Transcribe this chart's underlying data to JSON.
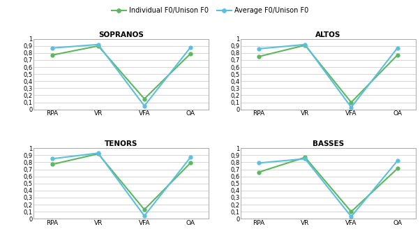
{
  "categories": [
    "RPA",
    "VR",
    "VFA",
    "OA"
  ],
  "panels": [
    {
      "title": "SOPRANOS",
      "individual": [
        0.77,
        0.9,
        0.15,
        0.79
      ],
      "average": [
        0.87,
        0.92,
        0.05,
        0.88
      ]
    },
    {
      "title": "ALTOS",
      "individual": [
        0.75,
        0.91,
        0.1,
        0.77
      ],
      "average": [
        0.86,
        0.92,
        0.03,
        0.87
      ]
    },
    {
      "title": "TENORS",
      "individual": [
        0.77,
        0.92,
        0.13,
        0.79
      ],
      "average": [
        0.85,
        0.93,
        0.04,
        0.87
      ]
    },
    {
      "title": "BASSES",
      "individual": [
        0.66,
        0.87,
        0.1,
        0.71
      ],
      "average": [
        0.79,
        0.85,
        0.03,
        0.82
      ]
    }
  ],
  "individual_color": "#5cb85c",
  "average_color": "#5bc0de",
  "individual_label": "Individual F0/Unison F0",
  "average_label": "Average F0/Unison F0",
  "ylim": [
    0,
    1.0
  ],
  "yticks": [
    0,
    0.1,
    0.2,
    0.3,
    0.4,
    0.5,
    0.6,
    0.7,
    0.8,
    0.9,
    1
  ],
  "ytick_labels": [
    "0",
    "0,1",
    "0,2",
    "0,3",
    "0,4",
    "0,5",
    "0,6",
    "0,7",
    "0,8",
    "0,9",
    "1"
  ],
  "marker": "o",
  "markersize": 3.5,
  "linewidth": 1.5,
  "background_color": "#ffffff",
  "grid_color": "#d0d0d0"
}
